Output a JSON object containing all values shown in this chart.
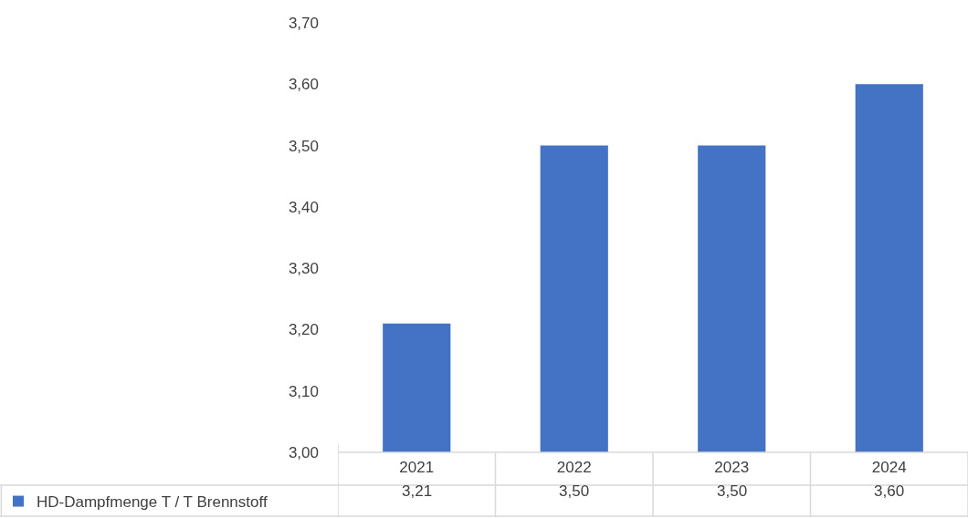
{
  "chart_data": {
    "type": "bar",
    "categories": [
      "2021",
      "2022",
      "2023",
      "2024"
    ],
    "series": [
      {
        "name": "HD-Dampfmenge T / T Brennstoff",
        "color": "#4472c4",
        "values": [
          3.21,
          3.5,
          3.5,
          3.6
        ],
        "value_labels": [
          "3,21",
          "3,50",
          "3,50",
          "3,60"
        ]
      }
    ],
    "ylim": [
      3.0,
      3.7
    ],
    "yticks": [
      {
        "value": 3.0,
        "label": "3,00"
      },
      {
        "value": 3.1,
        "label": "3,10"
      },
      {
        "value": 3.2,
        "label": "3,20"
      },
      {
        "value": 3.3,
        "label": "3,30"
      },
      {
        "value": 3.4,
        "label": "3,40"
      },
      {
        "value": 3.5,
        "label": "3,50"
      },
      {
        "value": 3.6,
        "label": "3,60"
      },
      {
        "value": 3.7,
        "label": "3,70"
      }
    ],
    "grid": false,
    "legend": "bottom left"
  }
}
